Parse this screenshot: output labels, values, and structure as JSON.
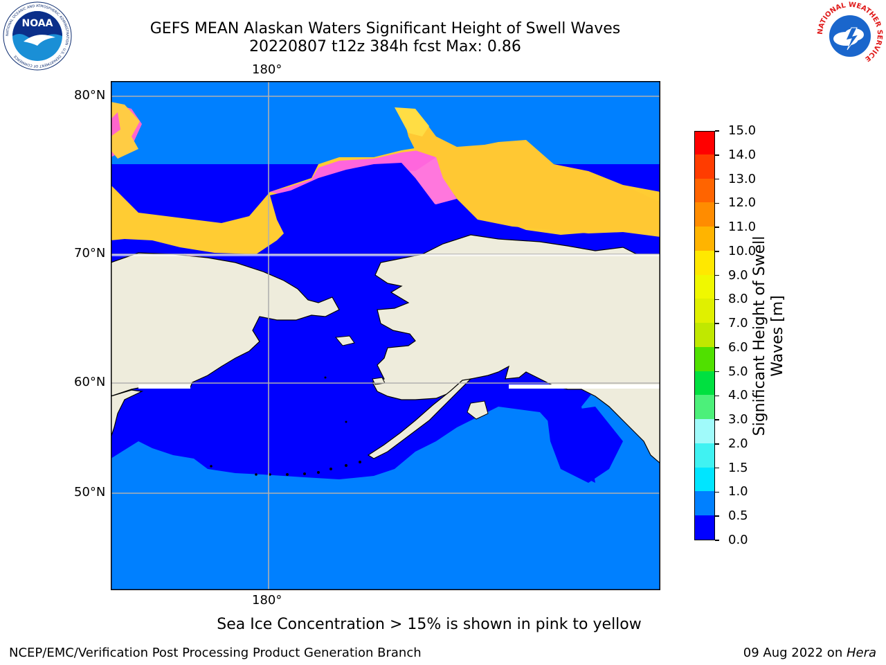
{
  "title": {
    "line1": "GEFS MEAN Alaskan Waters Significant Height of Swell Waves",
    "line2": "20220807 t12z 384h fcst   Max: 0.86"
  },
  "map": {
    "lon_labels": {
      "top": "180°",
      "bottom": "180°"
    },
    "lat_labels": [
      "80°N",
      "70°N",
      "60°N",
      "50°N"
    ],
    "colors": {
      "ocean_low": "#0000ff",
      "ocean_mid": "#0080ff",
      "land": "#eeecdc",
      "sea_ice_low": "#ff33ff",
      "sea_ice_high": "#ffdd33",
      "grid": "#b0b0b0"
    }
  },
  "colorbar": {
    "title": "Significant Height of Swell Waves [m]",
    "tick_labels": [
      "15.0",
      "14.0",
      "13.0",
      "12.0",
      "11.0",
      "10.0",
      "9.0",
      "8.0",
      "7.0",
      "6.0",
      "5.0",
      "4.0",
      "3.0",
      "2.0",
      "1.5",
      "1.0",
      "0.5",
      "0.0"
    ],
    "levels": [
      {
        "from": 0.0,
        "to": 0.5,
        "color": "#0000ff"
      },
      {
        "from": 0.5,
        "to": 1.0,
        "color": "#0080ff"
      },
      {
        "from": 1.0,
        "to": 1.5,
        "color": "#00e5ff"
      },
      {
        "from": 1.5,
        "to": 2.0,
        "color": "#40f2f2"
      },
      {
        "from": 2.0,
        "to": 3.0,
        "color": "#a0fafa"
      },
      {
        "from": 3.0,
        "to": 4.0,
        "color": "#4cf07a"
      },
      {
        "from": 4.0,
        "to": 5.0,
        "color": "#00e040"
      },
      {
        "from": 5.0,
        "to": 6.0,
        "color": "#50e000"
      },
      {
        "from": 6.0,
        "to": 7.0,
        "color": "#c0e800"
      },
      {
        "from": 7.0,
        "to": 8.0,
        "color": "#e0f000"
      },
      {
        "from": 8.0,
        "to": 9.0,
        "color": "#f0f800"
      },
      {
        "from": 9.0,
        "to": 10.0,
        "color": "#ffe800"
      },
      {
        "from": 10.0,
        "to": 11.0,
        "color": "#ffb400"
      },
      {
        "from": 11.0,
        "to": 12.0,
        "color": "#ff8c00"
      },
      {
        "from": 12.0,
        "to": 13.0,
        "color": "#ff6400"
      },
      {
        "from": 13.0,
        "to": 14.0,
        "color": "#ff3c00"
      },
      {
        "from": 14.0,
        "to": 15.0,
        "color": "#ff0000"
      }
    ]
  },
  "footnote": "Sea Ice Concentration > 15% is shown in pink to yellow",
  "footer": {
    "left": "NCEP/EMC/Verification Post Processing Product Generation Branch",
    "right_date": "09 Aug 2022 on ",
    "right_host": "Hera"
  },
  "logos": {
    "noaa_text": "NOAA",
    "noaa_ring": "NATIONAL OCEANIC AND ATMOSPHERIC ADMINISTRATION · U.S. DEPARTMENT OF COMMERCE",
    "nws_ring": "NATIONAL WEATHER SERVICE"
  }
}
